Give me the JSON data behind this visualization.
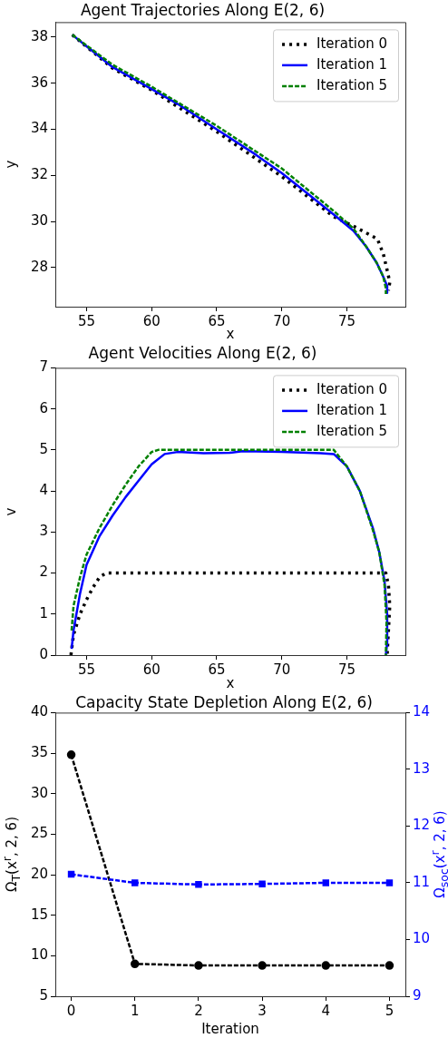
{
  "chart_data": [
    {
      "type": "line",
      "title": "Agent Trajectories Along E(2, 6)",
      "xlabel": "x",
      "ylabel": "y",
      "xlim": [
        52.6,
        79.5
      ],
      "xticks": [
        55,
        60,
        65,
        70,
        75
      ],
      "ylim": [
        26.3,
        38.65
      ],
      "yticks": [
        28,
        30,
        32,
        34,
        36,
        38
      ],
      "grid": false,
      "legend": "top right",
      "series": [
        {
          "name": "Iteration 0",
          "color": "#000000",
          "line_style": "dotted",
          "x": [
            53.9,
            57,
            60,
            65,
            70,
            74,
            75.5,
            76.5,
            77.35,
            77.8,
            78.16,
            78.3,
            78.2
          ],
          "values": [
            38.1,
            36.65,
            35.7,
            33.9,
            31.95,
            30.2,
            29.8,
            29.5,
            29.24,
            28.6,
            27.74,
            27.35,
            27.0
          ]
        },
        {
          "name": "Iteration 1",
          "color": "#0000ff",
          "line_style": "solid",
          "x": [
            53.9,
            55,
            57,
            60,
            62,
            65,
            68,
            70,
            72,
            74,
            75.5,
            76.5,
            77.3,
            77.8,
            78.1,
            78.1
          ],
          "values": [
            38.1,
            37.6,
            36.7,
            35.75,
            35.1,
            34.0,
            32.9,
            32.1,
            31.2,
            30.3,
            29.6,
            28.9,
            28.2,
            27.6,
            27.2,
            26.9
          ]
        },
        {
          "name": "Iteration 5",
          "color": "#008000",
          "line_style": "dashed",
          "x": [
            53.9,
            57,
            60,
            65,
            70,
            74,
            75.5,
            76.5,
            77.3,
            77.8,
            78.0,
            78.0
          ],
          "values": [
            38.1,
            36.8,
            35.85,
            34.15,
            32.3,
            30.45,
            29.7,
            28.9,
            28.2,
            27.6,
            27.1,
            26.85
          ]
        }
      ]
    },
    {
      "type": "line",
      "title": "Agent Velocities Along E(2, 6)",
      "xlabel": "x",
      "ylabel": "v",
      "xlim": [
        52.6,
        79.5
      ],
      "xticks": [
        55,
        60,
        65,
        70,
        75
      ],
      "ylim": [
        0,
        7
      ],
      "yticks": [
        0,
        1,
        2,
        3,
        4,
        5,
        6,
        7
      ],
      "grid": false,
      "legend": "top right",
      "series": [
        {
          "name": "Iteration 0",
          "color": "#000000",
          "line_style": "dotted",
          "x": [
            53.8,
            54,
            54.5,
            55,
            55.5,
            56,
            56.5,
            78.0,
            78.2,
            78.3,
            78.2,
            78.1
          ],
          "values": [
            0,
            0.5,
            1.0,
            1.35,
            1.65,
            1.9,
            2.0,
            2.0,
            1.7,
            1.2,
            0.6,
            0
          ]
        },
        {
          "name": "Iteration 1",
          "color": "#0000ff",
          "line_style": "solid",
          "x": [
            53.85,
            54,
            54.5,
            55,
            56,
            57,
            58,
            59,
            60,
            61,
            62,
            64,
            66,
            67,
            70,
            73,
            74,
            75,
            76,
            77,
            77.5,
            77.9,
            78.1,
            78.1,
            78.0
          ],
          "values": [
            0.15,
            0.6,
            1.5,
            2.2,
            2.9,
            3.4,
            3.85,
            4.25,
            4.65,
            4.9,
            4.95,
            4.92,
            4.93,
            4.97,
            4.95,
            4.92,
            4.9,
            4.6,
            4.0,
            3.1,
            2.5,
            1.8,
            1.0,
            0.3,
            0
          ]
        },
        {
          "name": "Iteration 5",
          "color": "#008000",
          "line_style": "dashed",
          "x": [
            53.85,
            54,
            54.5,
            55,
            56,
            57,
            58,
            59,
            60,
            60.5,
            74,
            75,
            76,
            77,
            77.5,
            77.9,
            78.05,
            78.0
          ],
          "values": [
            0.6,
            1.2,
            1.9,
            2.45,
            3.1,
            3.65,
            4.15,
            4.6,
            4.95,
            5.0,
            5.0,
            4.6,
            4.0,
            3.05,
            2.5,
            1.7,
            0.8,
            0
          ]
        }
      ]
    },
    {
      "type": "line",
      "title": "Capacity State Depletion Along E(2, 6)",
      "xlabel": "Iteration",
      "ylabel": "Ω$_{T}$(x$^{r}$, 2, 6)",
      "y2label": "Ω$_{soc}$(x$^{r}$, 2, 6)",
      "xlim": [
        -0.25,
        5.25
      ],
      "xticks": [
        0,
        1,
        2,
        3,
        4,
        5
      ],
      "ylim": [
        5,
        40
      ],
      "yticks": [
        5,
        10,
        15,
        20,
        25,
        30,
        35,
        40
      ],
      "y2lim": [
        9,
        14
      ],
      "y2ticks": [
        9,
        10,
        11,
        12,
        13,
        14
      ],
      "grid": false,
      "line_style": "dashed",
      "series": [
        {
          "color": "#000000",
          "marker": "circle",
          "x": [
            0,
            1,
            2,
            3,
            4,
            5
          ],
          "values": [
            34.8,
            9.0,
            8.8,
            8.8,
            8.8,
            8.8
          ]
        },
        {
          "color": "#0000ff",
          "marker": "square",
          "axis": "y2",
          "x": [
            0,
            1,
            2,
            3,
            4,
            5
          ],
          "values": [
            11.15,
            11.0,
            10.97,
            10.98,
            11.0,
            11.0
          ]
        }
      ]
    }
  ]
}
